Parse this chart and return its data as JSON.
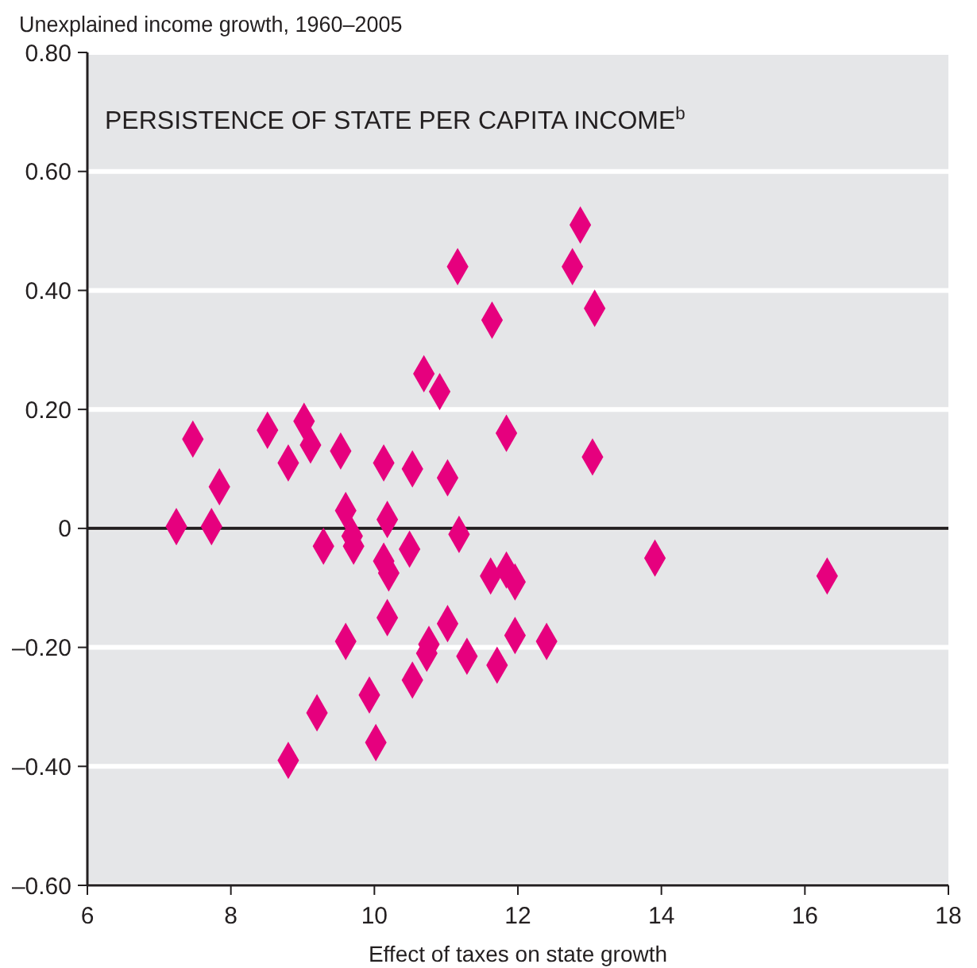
{
  "chart_data": {
    "type": "scatter",
    "title": "PERSISTENCE OF STATE PER CAPITA INCOME$^{b}$",
    "ylabel": "Unexplained income growth, 1960–2005",
    "xlabel": "Effect of taxes on state growth",
    "xlim": [
      6,
      18
    ],
    "xticks": [
      6,
      8,
      10,
      12,
      14,
      16,
      18
    ],
    "ylim": [
      -0.6,
      0.8
    ],
    "yticks": [
      {
        "value": 0.8,
        "label": "0.80"
      },
      {
        "value": 0.6,
        "label": "0.60"
      },
      {
        "value": 0.4,
        "label": "0.40"
      },
      {
        "value": 0.2,
        "label": "0.20"
      },
      0,
      {
        "value": -0.2,
        "label": "–0.20"
      },
      {
        "value": -0.4,
        "label": "–0.40"
      },
      {
        "value": -0.6,
        "label": "–0.60"
      }
    ],
    "grid": "y",
    "marker": "diamond",
    "ref_lines": [
      {
        "axis": "y",
        "value": 0,
        "color": "#231f20"
      }
    ],
    "series": [
      {
        "color": "#e6007e",
        "x": [
          11.16,
          12.76,
          13.07,
          11.64,
          10.69,
          10.91,
          11.84,
          13.04,
          10.13,
          10.53,
          11.02,
          10.18,
          11.18,
          10.49,
          10.13,
          10.2,
          11.62,
          11.84,
          11.96,
          10.18,
          11.02,
          11.96,
          12.4,
          10.76,
          10.73,
          11.29,
          11.71,
          10.53,
          9.93,
          12.87,
          13.91,
          16.31,
          7.47,
          8.51,
          9.02,
          9.11,
          8.8,
          9.53,
          7.84,
          7.24,
          7.73,
          9.6,
          9.29,
          9.69,
          9.71,
          9.6,
          9.2,
          10.02,
          8.8
        ],
        "values": [
          0.44,
          0.44,
          0.37,
          0.35,
          0.26,
          0.23,
          0.16,
          0.12,
          0.11,
          0.1,
          0.085,
          0.015,
          -0.01,
          -0.035,
          -0.055,
          -0.075,
          -0.08,
          -0.07,
          -0.09,
          -0.15,
          -0.16,
          -0.18,
          -0.19,
          -0.195,
          -0.21,
          -0.215,
          -0.23,
          -0.255,
          -0.28,
          0.51,
          -0.05,
          -0.08,
          0.15,
          0.165,
          0.18,
          0.14,
          0.11,
          0.13,
          0.07,
          0.003,
          0.003,
          0.03,
          -0.03,
          -0.013,
          -0.03,
          -0.19,
          -0.31,
          -0.36,
          -0.39
        ]
      }
    ]
  }
}
